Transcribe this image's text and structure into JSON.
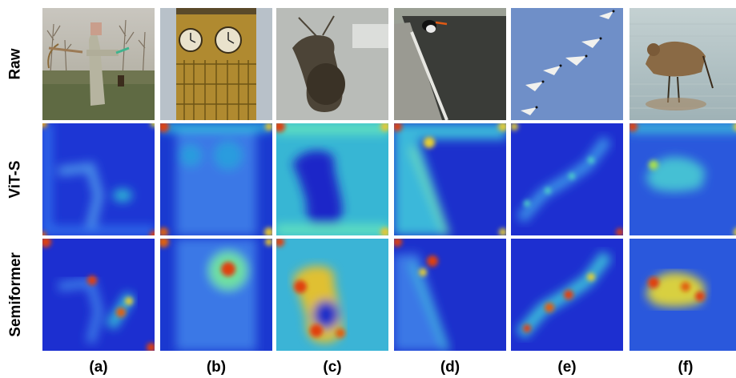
{
  "rows": [
    {
      "label": "Raw"
    },
    {
      "label": "ViT-S"
    },
    {
      "label": "Semiformer"
    }
  ],
  "columns": [
    {
      "label": "(a)"
    },
    {
      "label": "(b)"
    },
    {
      "label": "(c)"
    },
    {
      "label": "(d)"
    },
    {
      "label": "(e)"
    },
    {
      "label": "(f)"
    }
  ],
  "colors": {
    "heat_low": "#1a2fd6",
    "heat_mid": "#33c7e0",
    "heat_hot": "#e8e030",
    "heat_peak": "#e02010"
  }
}
